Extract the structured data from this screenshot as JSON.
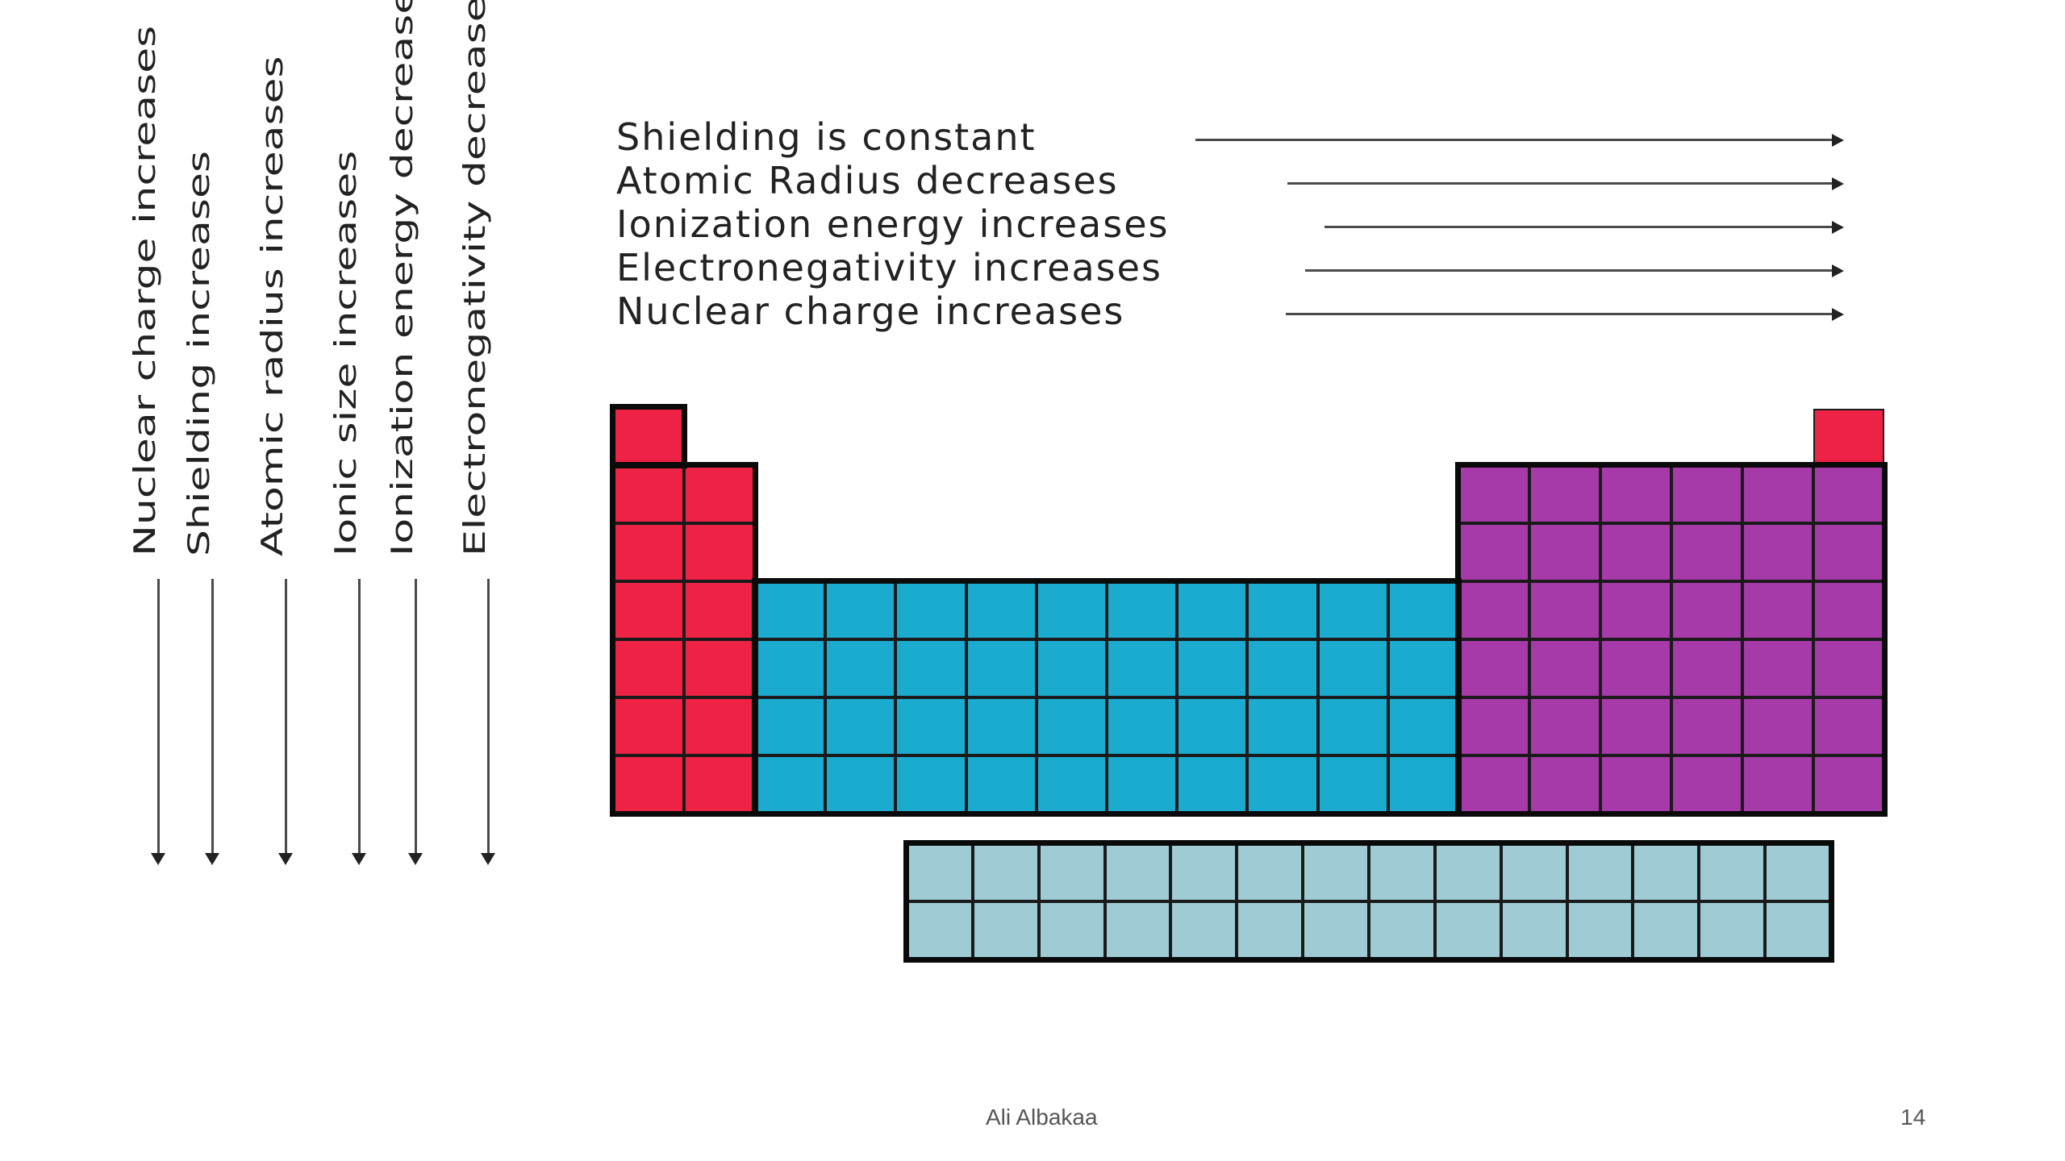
{
  "diagram": {
    "vertical_trends": [
      "Nuclear charge increases",
      "Shielding increases",
      "Atomic radius increases",
      "Ionic size increases",
      "Ionization energy decreases",
      "Electronegativity decreases"
    ],
    "horizontal_trends": [
      "Shielding is constant",
      "Atomic Radius decreases",
      "Ionization energy increases",
      "Electronegativity increases",
      "Nuclear charge increases"
    ],
    "block_colors": {
      "s_block": "#ee2244",
      "d_block": "#1aabcf",
      "p_block": "#a53aa8",
      "f_block": "#9ecbd4",
      "helium": "#ee2244"
    }
  },
  "footer": {
    "author": "Ali Albakaa",
    "page_number": "14"
  }
}
